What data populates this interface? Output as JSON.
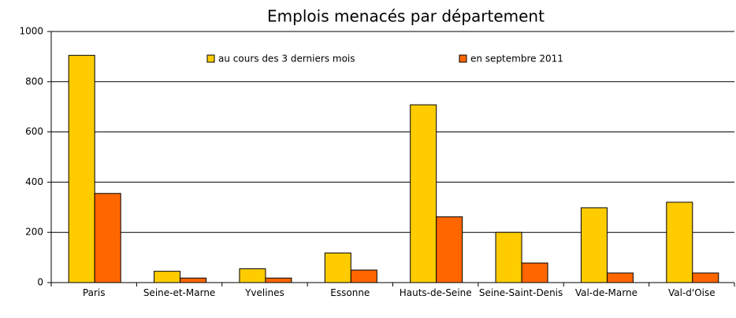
{
  "chart_data": {
    "type": "bar",
    "title": "Emplois menacés par département",
    "categories": [
      "Paris",
      "Seine-et-Marne",
      "Yvelines",
      "Essonne",
      "Hauts-de-Seine",
      "Seine-Saint-Denis",
      "Val-de-Marne",
      "Val-d'Oise"
    ],
    "series": [
      {
        "name": "au cours des 3 derniers mois",
        "color": "#ffcc00",
        "values": [
          905,
          45,
          55,
          118,
          708,
          200,
          298,
          320
        ]
      },
      {
        "name": "en septembre 2011",
        "color": "#ff6600",
        "values": [
          355,
          18,
          18,
          50,
          262,
          78,
          38,
          38
        ]
      }
    ],
    "ylim": [
      0,
      1000
    ],
    "yticks": [
      0,
      200,
      400,
      600,
      800,
      1000
    ],
    "grid": true,
    "legend": "top"
  }
}
